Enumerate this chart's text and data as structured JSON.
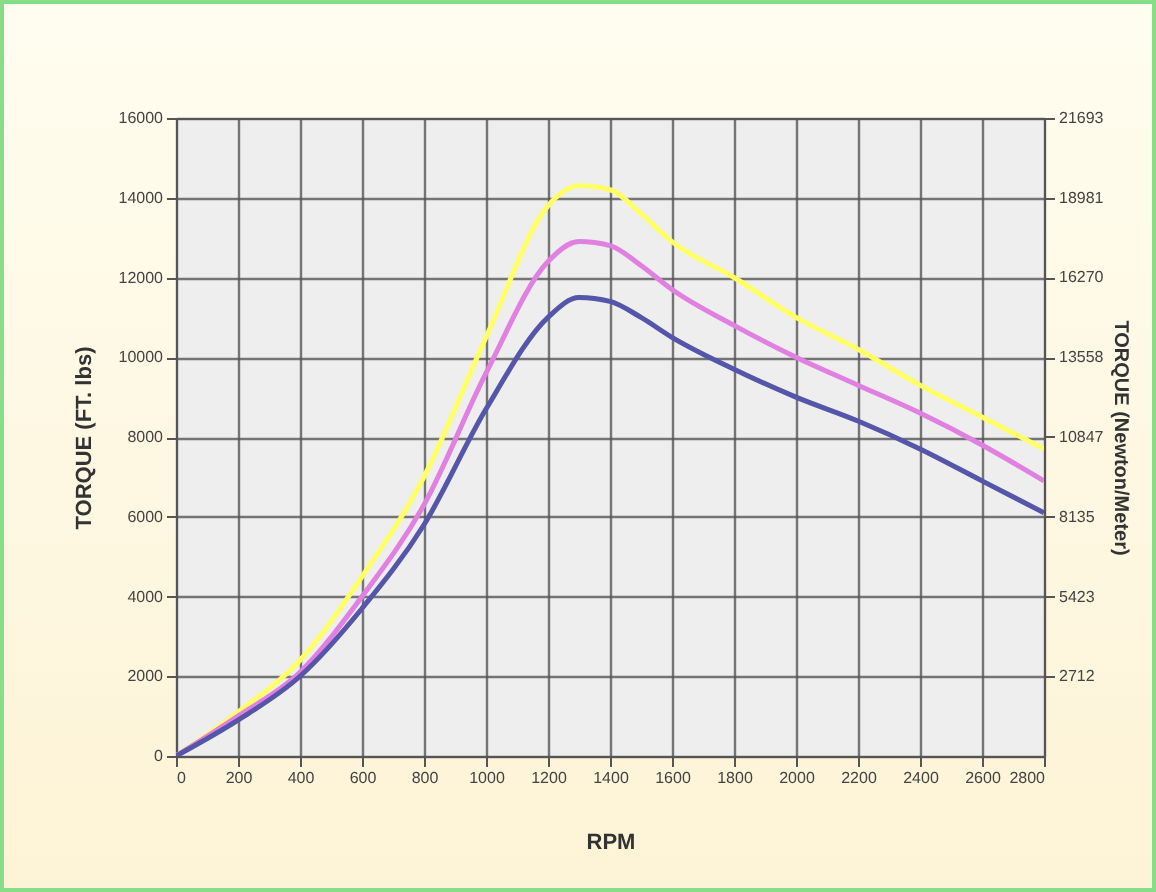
{
  "chart_data": {
    "type": "line",
    "xlabel": "RPM",
    "ylabel": "TORQUE (FT. lbs)",
    "y2label": "TORQUE (Newton/Meter)",
    "x": [
      0,
      200,
      400,
      600,
      800,
      1000,
      1200,
      1300,
      1400,
      1500,
      1600,
      1800,
      2000,
      2200,
      2400,
      2600,
      2800
    ],
    "series": [
      {
        "color": "#ffff66",
        "values": [
          0,
          1100,
          2400,
          4500,
          7000,
          10500,
          13800,
          14300,
          14200,
          13600,
          12900,
          12000,
          11000,
          10200,
          9300,
          8500,
          7700
        ]
      },
      {
        "color": "#e080e0",
        "values": [
          0,
          1000,
          2100,
          4000,
          6300,
          9600,
          12400,
          12900,
          12800,
          12300,
          11700,
          10800,
          10000,
          9300,
          8600,
          7800,
          6900
        ]
      },
      {
        "color": "#5555aa",
        "values": [
          0,
          900,
          2000,
          3700,
          5800,
          8700,
          11000,
          11500,
          11400,
          11000,
          10500,
          9700,
          9000,
          8400,
          7700,
          6900,
          6100
        ]
      }
    ],
    "xlim": [
      0,
      2800
    ],
    "xticks": [
      0,
      200,
      400,
      600,
      800,
      1000,
      1200,
      1400,
      1600,
      1800,
      2000,
      2200,
      2400,
      2600,
      2800
    ],
    "ylim": [
      0,
      16000
    ],
    "yticks": [
      0,
      2000,
      4000,
      6000,
      8000,
      10000,
      12000,
      14000,
      16000
    ],
    "y2lim": [
      0,
      21693
    ],
    "y2ticks": [
      2712,
      5423,
      8135,
      10847,
      13558,
      16270,
      18981,
      21693
    ],
    "grid": true,
    "legend": false,
    "marker": "none",
    "line_style": "solid"
  }
}
